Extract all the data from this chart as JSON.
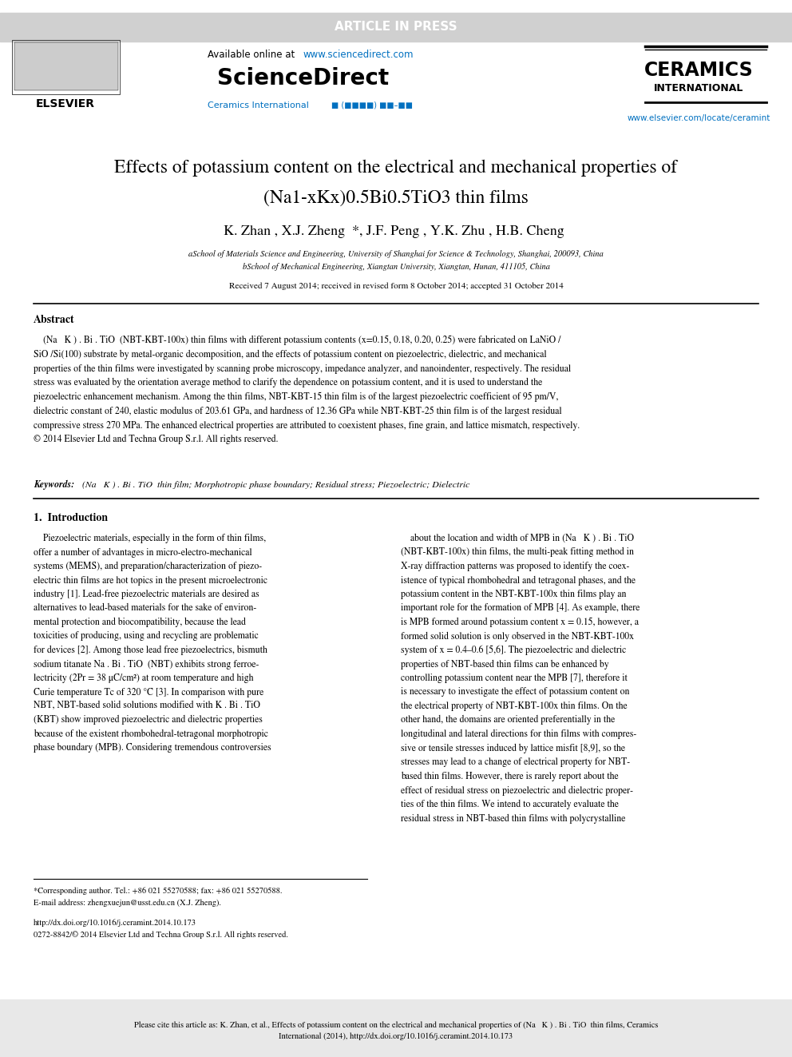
{
  "page_bg": "#ffffff",
  "header_bar_color": "#d0d0d0",
  "header_bar_text": "ARTICLE IN PRESS",
  "header_bar_text_color": "#ffffff",
  "sciencedirect_url": "www.sciencedirect.com",
  "sciencedirect_logo": "ScienceDirect",
  "ceramics_line1": "CERAMICS",
  "ceramics_line2": "INTERNATIONAL",
  "journal_url": "www.elsevier.com/locate/ceramint",
  "link_color": "#0070c0",
  "title_line1": "Effects of potassium content on the electrical and mechanical properties of",
  "title_line2_plain": "(Na1-xKx)0.5Bi0.5TiO3 thin films",
  "affil_a": "aSchool of Materials Science and Engineering, University of Shanghai for Science & Technology, Shanghai, 200093, China",
  "affil_b": "bSchool of Mechanical Engineering, Xiangtan University, Xiangtan, Hunan, 411105, China",
  "received": "Received 7 August 2014; received in revised form 8 October 2014; accepted 31 October 2014",
  "abstract_title": "Abstract",
  "footnote_star": "*Corresponding author. Tel.: +86 021 55270588; fax: +86 021 55270588.",
  "footnote_email": "E-mail address: zhengxuejun@usst.edu.cn (X.J. Zheng).",
  "doi": "http://dx.doi.org/10.1016/j.ceramint.2014.10.173",
  "issn": "0272-8842/© 2014 Elsevier Ltd and Techna Group S.r.l. All rights reserved.",
  "cite_bg": "#e8e8e8",
  "black": "#000000"
}
